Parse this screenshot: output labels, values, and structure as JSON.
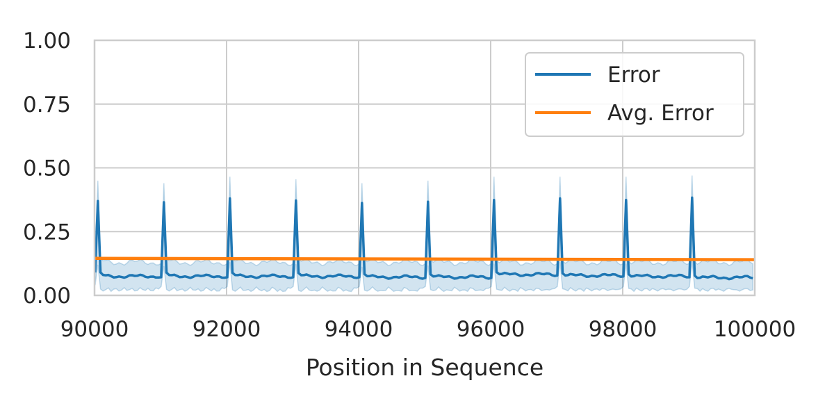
{
  "chart_data": {
    "type": "line",
    "title": "",
    "xlabel": "Position in Sequence",
    "ylabel": "",
    "xlim": [
      90000,
      100000
    ],
    "ylim": [
      0,
      1
    ],
    "x_ticks": [
      "90000",
      "92000",
      "94000",
      "96000",
      "98000",
      "100000"
    ],
    "x_tick_values": [
      90000,
      92000,
      94000,
      96000,
      98000,
      100000
    ],
    "y_ticks": [
      "0.00",
      "0.25",
      "0.50",
      "0.75",
      "1.00"
    ],
    "y_tick_values": [
      0,
      0.25,
      0.5,
      0.75,
      1.0
    ],
    "grid": true,
    "legend_position": "top-right",
    "period": 1000,
    "spike_offset": 50,
    "series": [
      {
        "name": "Error",
        "color": "#1f77b4",
        "band_color": "#1f77b4",
        "spike_x": [
          90050,
          91050,
          92050,
          93050,
          94050,
          95050,
          96050,
          97050,
          98050,
          99050
        ],
        "spike_values": [
          0.37,
          0.365,
          0.38,
          0.372,
          0.362,
          0.367,
          0.374,
          0.38,
          0.374,
          0.383
        ],
        "spike_upper": [
          0.45,
          0.44,
          0.465,
          0.455,
          0.44,
          0.45,
          0.465,
          0.465,
          0.465,
          0.47
        ],
        "baseline_values": [
          0.075,
          0.075,
          0.075,
          0.075,
          0.072,
          0.072,
          0.082,
          0.078,
          0.075,
          0.07
        ],
        "band_lower": 0.015,
        "band_upper": 0.13
      },
      {
        "name": "Avg. Error",
        "color": "#ff7f0e",
        "x": [
          90000,
          100000
        ],
        "values": [
          0.145,
          0.14
        ]
      }
    ]
  }
}
